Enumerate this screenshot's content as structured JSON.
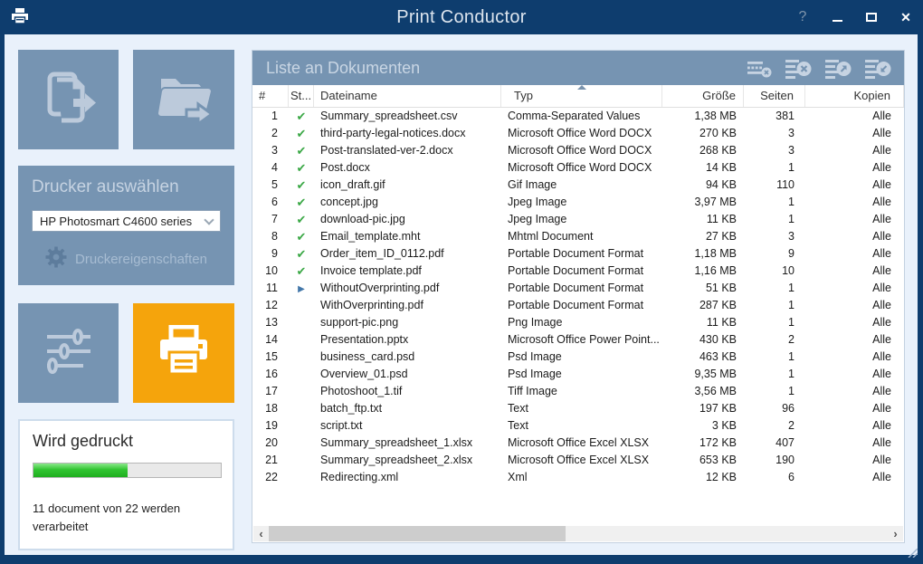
{
  "colors": {
    "titlebar_navy": "#0e3d6e",
    "panel_blue": "#7694b2",
    "accent_orange": "#f5a40c",
    "window_bg": "#e9f1fb",
    "progress_green": "#32c532",
    "check_green": "#3ba846",
    "printing_blue": "#4377a9"
  },
  "icons": {
    "check": "✔",
    "play": "▶",
    "scroll_left": "‹",
    "scroll_right": "›",
    "help": "?",
    "close": "✕"
  },
  "titlebar": {
    "title": "Print Conductor"
  },
  "sidebar": {
    "printer": {
      "label": "Drucker auswählen",
      "selected": "HP Photosmart C4600 series",
      "properties_label": "Druckereigenschaften"
    },
    "progress": {
      "title": "Wird gedruckt",
      "percent": 50,
      "status": "11 document von 22 werden verarbeitet"
    }
  },
  "main": {
    "list_title": "Liste an Dokumenten",
    "columns": {
      "num": "#",
      "status": "St...",
      "name": "Dateiname",
      "type": "Typ",
      "size": "Größe",
      "pages": "Seiten",
      "copies": "Kopien"
    },
    "sort": {
      "column": "type",
      "direction": "asc"
    },
    "documents": [
      {
        "num": "1",
        "status": "done",
        "name": "Summary_spreadsheet.csv",
        "type": "Comma-Separated Values",
        "size": "1,38 MB",
        "pages": "381",
        "copies": "Alle"
      },
      {
        "num": "2",
        "status": "done",
        "name": "third-party-legal-notices.docx",
        "type": "Microsoft Office Word DOCX",
        "size": "270 KB",
        "pages": "3",
        "copies": "Alle"
      },
      {
        "num": "3",
        "status": "done",
        "name": "Post-translated-ver-2.docx",
        "type": "Microsoft Office Word DOCX",
        "size": "268 KB",
        "pages": "3",
        "copies": "Alle"
      },
      {
        "num": "4",
        "status": "done",
        "name": "Post.docx",
        "type": "Microsoft Office Word DOCX",
        "size": "14 KB",
        "pages": "1",
        "copies": "Alle"
      },
      {
        "num": "5",
        "status": "done",
        "name": "icon_draft.gif",
        "type": "Gif Image",
        "size": "94 KB",
        "pages": "110",
        "copies": "Alle"
      },
      {
        "num": "6",
        "status": "done",
        "name": "concept.jpg",
        "type": "Jpeg Image",
        "size": "3,97 MB",
        "pages": "1",
        "copies": "Alle"
      },
      {
        "num": "7",
        "status": "done",
        "name": "download-pic.jpg",
        "type": "Jpeg Image",
        "size": "11 KB",
        "pages": "1",
        "copies": "Alle"
      },
      {
        "num": "8",
        "status": "done",
        "name": "Email_template.mht",
        "type": "Mhtml Document",
        "size": "27 KB",
        "pages": "3",
        "copies": "Alle"
      },
      {
        "num": "9",
        "status": "done",
        "name": "Order_item_ID_0112.pdf",
        "type": "Portable Document Format",
        "size": "1,18 MB",
        "pages": "9",
        "copies": "Alle"
      },
      {
        "num": "10",
        "status": "done",
        "name": "Invoice template.pdf",
        "type": "Portable Document Format",
        "size": "1,16 MB",
        "pages": "10",
        "copies": "Alle"
      },
      {
        "num": "11",
        "status": "printing",
        "name": "WithoutOverprinting.pdf",
        "type": "Portable Document Format",
        "size": "51 KB",
        "pages": "1",
        "copies": "Alle"
      },
      {
        "num": "12",
        "status": "",
        "name": "WithOverprinting.pdf",
        "type": "Portable Document Format",
        "size": "287 KB",
        "pages": "1",
        "copies": "Alle"
      },
      {
        "num": "13",
        "status": "",
        "name": "support-pic.png",
        "type": "Png Image",
        "size": "11 KB",
        "pages": "1",
        "copies": "Alle"
      },
      {
        "num": "14",
        "status": "",
        "name": "Presentation.pptx",
        "type": "Microsoft Office Power Point...",
        "size": "430 KB",
        "pages": "2",
        "copies": "Alle"
      },
      {
        "num": "15",
        "status": "",
        "name": "business_card.psd",
        "type": "Psd Image",
        "size": "463 KB",
        "pages": "1",
        "copies": "Alle"
      },
      {
        "num": "16",
        "status": "",
        "name": "Overview_01.psd",
        "type": "Psd Image",
        "size": "9,35 MB",
        "pages": "1",
        "copies": "Alle"
      },
      {
        "num": "17",
        "status": "",
        "name": "Photoshoot_1.tif",
        "type": "Tiff Image",
        "size": "3,56 MB",
        "pages": "1",
        "copies": "Alle"
      },
      {
        "num": "18",
        "status": "",
        "name": "batch_ftp.txt",
        "type": "Text",
        "size": "197 KB",
        "pages": "96",
        "copies": "Alle"
      },
      {
        "num": "19",
        "status": "",
        "name": "script.txt",
        "type": "Text",
        "size": "3 KB",
        "pages": "2",
        "copies": "Alle"
      },
      {
        "num": "20",
        "status": "",
        "name": "Summary_spreadsheet_1.xlsx",
        "type": "Microsoft Office Excel XLSX",
        "size": "172 KB",
        "pages": "407",
        "copies": "Alle"
      },
      {
        "num": "21",
        "status": "",
        "name": "Summary_spreadsheet_2.xlsx",
        "type": "Microsoft Office Excel XLSX",
        "size": "653 KB",
        "pages": "190",
        "copies": "Alle"
      },
      {
        "num": "22",
        "status": "",
        "name": "Redirecting.xml",
        "type": "Xml",
        "size": "12 KB",
        "pages": "6",
        "copies": "Alle"
      }
    ]
  }
}
